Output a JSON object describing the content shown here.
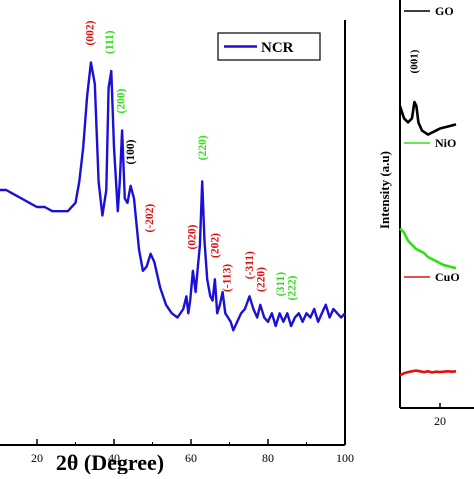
{
  "chart_data": [
    {
      "type": "line",
      "xlabel": "2θ (Degree)",
      "ylabel": "",
      "xlim": [
        0,
        100
      ],
      "xticks": [
        20,
        40,
        60,
        80,
        100
      ],
      "ylim": [
        0,
        100
      ],
      "series": [
        {
          "name": "NCR",
          "color": "#1a10d6",
          "points": [
            [
              0,
              66
            ],
            [
              2,
              64
            ],
            [
              4,
              63
            ],
            [
              6,
              62
            ],
            [
              8,
              61
            ],
            [
              10,
              60
            ],
            [
              12,
              60
            ],
            [
              14,
              59
            ],
            [
              16,
              58
            ],
            [
              18,
              57
            ],
            [
              20,
              56
            ],
            [
              22,
              56
            ],
            [
              24,
              55
            ],
            [
              26,
              55
            ],
            [
              28,
              55
            ],
            [
              30,
              57
            ],
            [
              31,
              62
            ],
            [
              32,
              70
            ],
            [
              33,
              82
            ],
            [
              34,
              90
            ],
            [
              35,
              85
            ],
            [
              36,
              62
            ],
            [
              37,
              54
            ],
            [
              38,
              60
            ],
            [
              38.6,
              84
            ],
            [
              39.3,
              88
            ],
            [
              40,
              70
            ],
            [
              41,
              55
            ],
            [
              41.5,
              62
            ],
            [
              42.1,
              74
            ],
            [
              42.8,
              58
            ],
            [
              43.5,
              57
            ],
            [
              44.3,
              61
            ],
            [
              45.2,
              58
            ],
            [
              46.5,
              46
            ],
            [
              47.5,
              41
            ],
            [
              48.5,
              42
            ],
            [
              49.5,
              45
            ],
            [
              50.5,
              43
            ],
            [
              52,
              37
            ],
            [
              53.5,
              33
            ],
            [
              55,
              31
            ],
            [
              56.5,
              30
            ],
            [
              58,
              32
            ],
            [
              58.8,
              35
            ],
            [
              59.3,
              31
            ],
            [
              59.8,
              34
            ],
            [
              60.5,
              41
            ],
            [
              61.2,
              36
            ],
            [
              61.8,
              42
            ],
            [
              62.3,
              47
            ],
            [
              62.9,
              62
            ],
            [
              63.5,
              48
            ],
            [
              64.2,
              39
            ],
            [
              65,
              35
            ],
            [
              65.6,
              34
            ],
            [
              66.2,
              39
            ],
            [
              66.8,
              31
            ],
            [
              67.5,
              33
            ],
            [
              68.2,
              36
            ],
            [
              68.9,
              31
            ],
            [
              69.6,
              30
            ],
            [
              70.3,
              29
            ],
            [
              71,
              27
            ],
            [
              72,
              29
            ],
            [
              73,
              31
            ],
            [
              74,
              32
            ],
            [
              75.2,
              35
            ],
            [
              76.2,
              32
            ],
            [
              77.2,
              30
            ],
            [
              78,
              33
            ],
            [
              79,
              30
            ],
            [
              80,
              29
            ],
            [
              81,
              31
            ],
            [
              82,
              28
            ],
            [
              83,
              31
            ],
            [
              84,
              29
            ],
            [
              85,
              31
            ],
            [
              86,
              28
            ],
            [
              87,
              30
            ],
            [
              88,
              31
            ],
            [
              89,
              29
            ],
            [
              90,
              31
            ],
            [
              91,
              30
            ],
            [
              92,
              32
            ],
            [
              93,
              29
            ],
            [
              94,
              31
            ],
            [
              95,
              33
            ],
            [
              96,
              30
            ],
            [
              97,
              32
            ],
            [
              98,
              31
            ],
            [
              99,
              30
            ],
            [
              100,
              31
            ]
          ]
        }
      ],
      "annotations": [
        {
          "text": "(002)",
          "color": "#e01010",
          "x": 34,
          "y": 94
        },
        {
          "text": "(111)",
          "color": "#33dd1a",
          "x": 39,
          "y": 92
        },
        {
          "text": "(200)",
          "color": "#33dd1a",
          "x": 42,
          "y": 78
        },
        {
          "text": "(100)",
          "color": "#000000",
          "x": 44.5,
          "y": 66
        },
        {
          "text": "(-202)",
          "color": "#e01010",
          "x": 49.5,
          "y": 50
        },
        {
          "text": "(020)",
          "color": "#e01010",
          "x": 60.5,
          "y": 46
        },
        {
          "text": "(220)",
          "color": "#33dd1a",
          "x": 63.2,
          "y": 67
        },
        {
          "text": "(202)",
          "color": "#e01010",
          "x": 66.4,
          "y": 44
        },
        {
          "text": "(-113)",
          "color": "#e01010",
          "x": 69.6,
          "y": 36
        },
        {
          "text": "(-311)",
          "color": "#e01010",
          "x": 75.4,
          "y": 39
        },
        {
          "text": "(220)",
          "color": "#e01010",
          "x": 78.4,
          "y": 36
        },
        {
          "text": "(311)",
          "color": "#33dd1a",
          "x": 83.5,
          "y": 35
        },
        {
          "text": "(222)",
          "color": "#33dd1a",
          "x": 86.5,
          "y": 34
        }
      ],
      "legend": {
        "position": "top-right",
        "entries": [
          "NCR"
        ]
      }
    },
    {
      "type": "line",
      "xlabel": "",
      "ylabel": "Intensity (a.u)",
      "xticks": [
        20
      ],
      "series": [
        {
          "name": "GO",
          "color": "#000000",
          "points": [
            [
              10,
              74
            ],
            [
              11,
              71
            ],
            [
              12,
              70
            ],
            [
              13,
              71
            ],
            [
              13.6,
              75
            ],
            [
              14.1,
              74
            ],
            [
              14.6,
              70
            ],
            [
              15.5,
              68
            ],
            [
              17,
              67
            ],
            [
              19,
              68
            ],
            [
              20,
              68.5
            ],
            [
              22,
              69
            ],
            [
              24,
              69.5
            ]
          ]
        },
        {
          "name": "NiO",
          "color": "#33dd1a",
          "points": [
            [
              10,
              44
            ],
            [
              11,
              43
            ],
            [
              12,
              41
            ],
            [
              13,
              40
            ],
            [
              14,
              39
            ],
            [
              15,
              38.5
            ],
            [
              16,
              38
            ],
            [
              17,
              37
            ],
            [
              18,
              36.5
            ],
            [
              19,
              36
            ],
            [
              20,
              35.5
            ],
            [
              21,
              35
            ],
            [
              22,
              34.8
            ],
            [
              23,
              34.5
            ],
            [
              24,
              34.3
            ]
          ]
        },
        {
          "name": "CuO",
          "color": "#e01010",
          "points": [
            [
              10,
              8
            ],
            [
              11,
              8.5
            ],
            [
              12,
              8.8
            ],
            [
              13,
              9
            ],
            [
              14,
              9.2
            ],
            [
              15,
              9
            ],
            [
              16,
              8.8
            ],
            [
              17,
              9
            ],
            [
              18,
              8.7
            ],
            [
              19,
              8.9
            ],
            [
              20,
              8.8
            ],
            [
              21,
              8.9
            ],
            [
              22,
              9
            ],
            [
              23,
              8.9
            ],
            [
              24,
              9
            ]
          ]
        }
      ],
      "annotations": [
        {
          "text": "(001)",
          "color": "#000000",
          "x": 13.8,
          "y": 82
        }
      ],
      "legend": {
        "position": "left",
        "entries": [
          "GO",
          "NiO",
          "CuO"
        ]
      }
    }
  ]
}
